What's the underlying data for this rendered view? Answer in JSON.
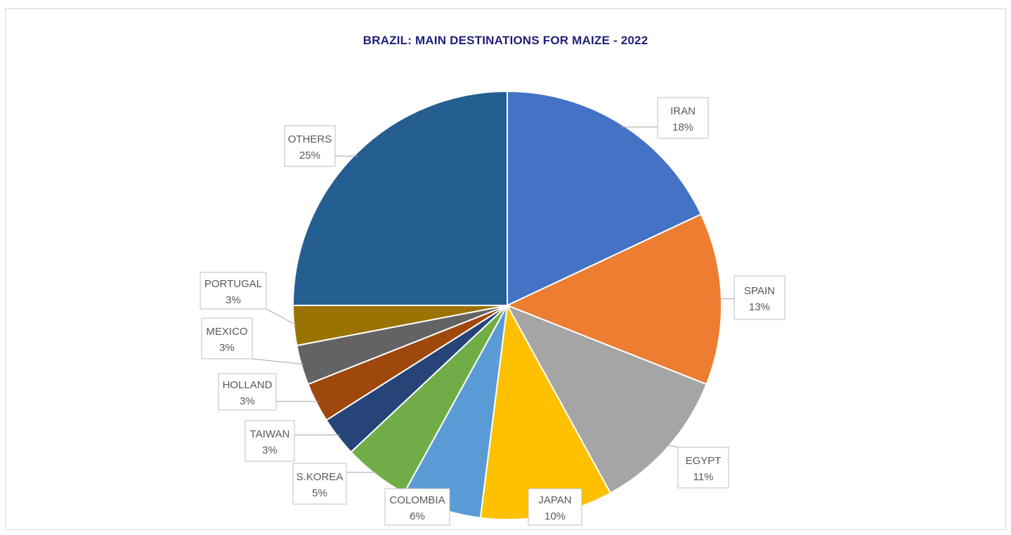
{
  "chart_data": {
    "type": "pie",
    "title": "BRAZIL: MAIN DESTINATIONS FOR MAIZE - 2022",
    "slices": [
      {
        "label": "IRAN",
        "value": 18,
        "pct_label": "18%",
        "color": "#4472C4"
      },
      {
        "label": "SPAIN",
        "value": 13,
        "pct_label": "13%",
        "color": "#ED7D31"
      },
      {
        "label": "EGYPT",
        "value": 11,
        "pct_label": "11%",
        "color": "#A5A5A5"
      },
      {
        "label": "JAPAN",
        "value": 10,
        "pct_label": "10%",
        "color": "#FFC000"
      },
      {
        "label": "COLOMBIA",
        "value": 6,
        "pct_label": "6%",
        "color": "#5B9BD5"
      },
      {
        "label": "S.KOREA",
        "value": 5,
        "pct_label": "5%",
        "color": "#70AD47"
      },
      {
        "label": "TAIWAN",
        "value": 3,
        "pct_label": "3%",
        "color": "#264478"
      },
      {
        "label": "HOLLAND",
        "value": 3,
        "pct_label": "3%",
        "color": "#9E480E"
      },
      {
        "label": "MEXICO",
        "value": 3,
        "pct_label": "3%",
        "color": "#636363"
      },
      {
        "label": "PORTUGAL",
        "value": 3,
        "pct_label": "3%",
        "color": "#997300"
      },
      {
        "label": "OTHERS",
        "value": 25,
        "pct_label": "25%",
        "color": "#255E91"
      }
    ]
  }
}
